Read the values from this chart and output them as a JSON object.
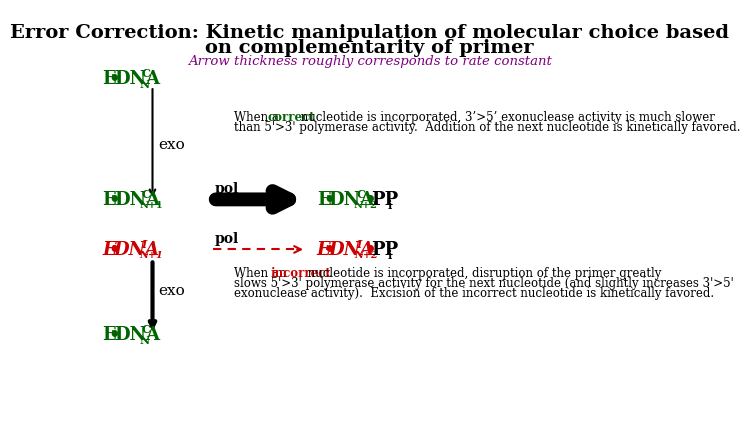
{
  "title_line1": "Error Correction: Kinetic manipulation of molecular choice based",
  "title_line2": "on complementarity of primer",
  "subtitle": "Arrow thickness roughly corresponds to rate constant",
  "title_color": "#000000",
  "subtitle_color": "#800080",
  "bg_color": "#ffffff",
  "dna_correct_color": "#006400",
  "dna_incorrect_color": "#cc0000",
  "correct_word_color": "#006400",
  "incorrect_word_color": "#cc0000",
  "body_text_color": "#000000",
  "exo_label_color": "#000000",
  "pol_label_color": "#000000",
  "arrow_correct_color": "#000000",
  "correct_text2": "than 5'>3' polymerase activity.  Addition of the next nucleotide is kinetically favored.",
  "incorrect_text2": "slows 5'>3' polymerase activity for the next nucleotide (and slightly increases 3'>5'",
  "incorrect_text3": "exonuclease activity).  Excision of the incorrect nucleotide is kinetically favored."
}
